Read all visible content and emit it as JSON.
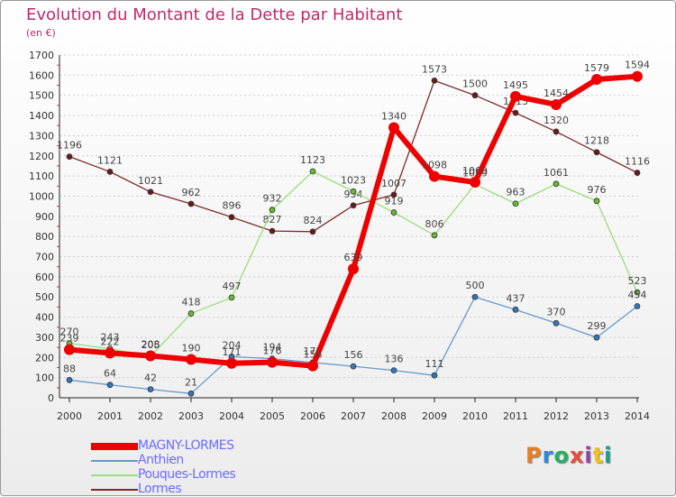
{
  "title": "Evolution du Montant de la Dette par Habitant",
  "subtitle": "(en €)",
  "logo_text": "Proxiti",
  "logo_colors": [
    "#e67e22",
    "#2e86de",
    "#27ae60",
    "#e74c3c",
    "#8e44ad",
    "#f1c40f",
    "#16a085"
  ],
  "chart_data": {
    "type": "line",
    "title": "Evolution du Montant de la Dette par Habitant",
    "subtitle": "(en €)",
    "xlabel": "",
    "ylabel": "",
    "ylim": [
      0,
      1700
    ],
    "yticks": [
      0,
      100,
      200,
      300,
      400,
      500,
      600,
      700,
      800,
      900,
      1000,
      1100,
      1200,
      1300,
      1400,
      1500,
      1600,
      1700
    ],
    "grid": "horizontal-dashed",
    "legend": "bottom-left",
    "x": [
      "2000",
      "2001",
      "2002",
      "2003",
      "2004",
      "2005",
      "2006",
      "2007",
      "2008",
      "2009",
      "2010",
      "2011",
      "2012",
      "2013",
      "2014"
    ],
    "series": [
      {
        "name": "Lormes",
        "color": "#7d2a2a",
        "point_color": "#6a1a1a",
        "width": 1.3,
        "marker": 3,
        "values": [
          1196,
          1121,
          1021,
          962,
          896,
          827,
          824,
          954,
          1007,
          1573,
          1500,
          1413,
          1320,
          1218,
          1116
        ]
      },
      {
        "name": "Pouques-Lormes",
        "color": "#99dd77",
        "point_color": "#66bb33",
        "width": 1.3,
        "marker": 3,
        "values": [
          270,
          243,
          205,
          418,
          497,
          932,
          1123,
          1023,
          919,
          806,
          1059,
          963,
          1061,
          976,
          523
        ]
      },
      {
        "name": "Anthien",
        "color": "#6699cc",
        "point_color": "#3377bb",
        "width": 1.3,
        "marker": 3,
        "values": [
          88,
          64,
          42,
          21,
          204,
          194,
          175,
          156,
          136,
          111,
          500,
          437,
          370,
          299,
          454
        ]
      },
      {
        "name": "MAGNY-LORMES",
        "color": "#ee0000",
        "point_color": "#ee0000",
        "width": 6,
        "marker": 6,
        "values": [
          239,
          222,
          208,
          190,
          171,
          176,
          158,
          639,
          1340,
          1098,
          1069,
          1495,
          1454,
          1579,
          1594
        ]
      }
    ]
  },
  "legend": [
    {
      "name": "MAGNY-LORMES",
      "color": "#ee0000",
      "thick": true
    },
    {
      "name": "Anthien",
      "color": "#6699cc",
      "thick": false
    },
    {
      "name": "Pouques-Lormes",
      "color": "#99dd77",
      "thick": false
    },
    {
      "name": "Lormes",
      "color": "#7d2a2a",
      "thick": false
    }
  ]
}
